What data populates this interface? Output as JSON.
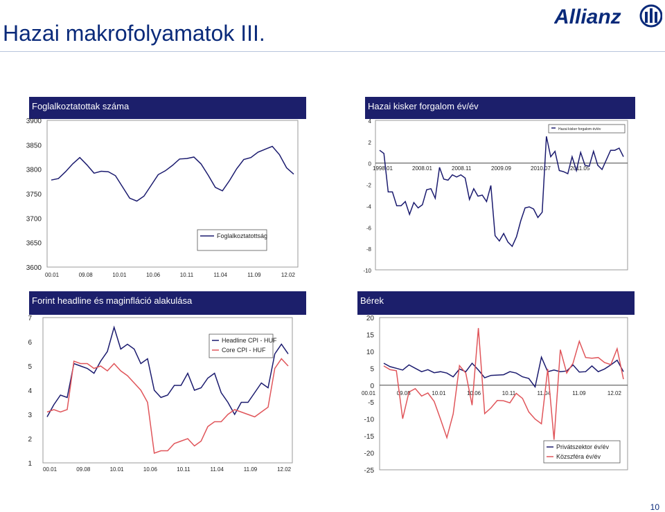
{
  "page": {
    "title": "Hazai makrofolyamatok III.",
    "page_number": "10",
    "logo_text": "Allianz"
  },
  "colors": {
    "header_bg": "#1c1f6b",
    "navy": "#1a1a6e",
    "red": "#e0555a",
    "title": "#0a2a7a"
  },
  "chart_data": [
    {
      "type": "line",
      "header": "Foglalkoztatottak száma",
      "ylim": [
        3600,
        3900
      ],
      "yticks": [
        "3600",
        "3650",
        "3700",
        "3750",
        "3800",
        "3850",
        "3900"
      ],
      "xtick_labels": [
        "00.01",
        "09.08",
        "10.01",
        "10.06",
        "10.11",
        "11.04",
        "11.09",
        "12.02"
      ],
      "series": [
        {
          "name": "Foglalkoztatottság",
          "values": [
            3778,
            3781,
            3795,
            3811,
            3824,
            3809,
            3792,
            3796,
            3795,
            3787,
            3764,
            3741,
            3735,
            3745,
            3767,
            3789,
            3797,
            3808,
            3821,
            3822,
            3825,
            3811,
            3788,
            3763,
            3756,
            3777,
            3801,
            3820,
            3824,
            3835,
            3841,
            3847,
            3830,
            3803,
            3790
          ]
        }
      ]
    },
    {
      "type": "line",
      "header": "Hazai kisker forgalom év/év",
      "ylim": [
        -10,
        4
      ],
      "yticks": [
        "-10",
        "-8",
        "-6",
        "-4",
        "-2",
        "0",
        "2",
        "4"
      ],
      "xtick_labels": [
        "1998.01",
        "2008.01",
        "2008.11",
        "2009.09",
        "2010.07",
        "2011.05"
      ],
      "series": [
        {
          "name": "Hazai kisker forgalom év/év",
          "values": [
            1.2,
            0.9,
            -2.7,
            -2.7,
            -4.0,
            -4.0,
            -3.6,
            -4.8,
            -3.7,
            -4.2,
            -3.9,
            -2.5,
            -2.4,
            -3.3,
            -0.4,
            -1.5,
            -1.6,
            -1.1,
            -1.3,
            -1.1,
            -1.4,
            -3.4,
            -2.4,
            -3.1,
            -3.0,
            -3.6,
            -2.1,
            -6.8,
            -7.3,
            -6.6,
            -7.4,
            -7.8,
            -6.9,
            -5.4,
            -4.2,
            -4.1,
            -4.3,
            -5.1,
            -4.6,
            2.5,
            0.6,
            1.1,
            -0.7,
            -0.8,
            -1.0,
            0.6,
            -0.7,
            1.0,
            -0.2,
            -0.3,
            1.1,
            -0.2,
            -0.6,
            0.3,
            1.2,
            1.2,
            1.4,
            0.6
          ]
        }
      ]
    },
    {
      "type": "line",
      "header": "Forint headline és maginfláció alakulása",
      "ylim": [
        1,
        7
      ],
      "yticks": [
        "1",
        "2",
        "3",
        "4",
        "5",
        "6",
        "7"
      ],
      "xtick_labels": [
        "00.01",
        "09.08",
        "10.01",
        "10.06",
        "10.11",
        "11.04",
        "11.09",
        "12.02"
      ],
      "series": [
        {
          "name": "Headline CPI - HUF",
          "values": [
            2.9,
            3.4,
            3.8,
            3.7,
            5.1,
            5.0,
            4.9,
            4.7,
            5.2,
            5.6,
            6.6,
            5.7,
            5.9,
            5.7,
            5.1,
            5.3,
            4.0,
            3.7,
            3.8,
            4.2,
            4.2,
            4.7,
            4.0,
            4.1,
            4.5,
            4.7,
            3.9,
            3.5,
            3.0,
            3.5,
            3.5,
            3.9,
            4.3,
            4.1,
            5.5,
            5.9,
            5.5
          ]
        },
        {
          "name": "Core CPI - HUF",
          "values": [
            3.1,
            3.2,
            3.1,
            3.2,
            5.2,
            5.1,
            5.1,
            4.9,
            5.0,
            4.8,
            5.1,
            4.8,
            4.6,
            4.3,
            4.0,
            3.5,
            1.4,
            1.5,
            1.5,
            1.8,
            1.9,
            2.0,
            1.7,
            1.9,
            2.5,
            2.7,
            2.7,
            3.0,
            3.2,
            3.1,
            3.0,
            2.9,
            3.1,
            3.3,
            4.9,
            5.3,
            5.0
          ]
        }
      ]
    },
    {
      "type": "line",
      "header": "Bérek",
      "ylim": [
        -25,
        20
      ],
      "yticks": [
        "-25",
        "-20",
        "-15",
        "-10",
        "-5",
        "0",
        "5",
        "10",
        "15",
        "20"
      ],
      "xtick_labels": [
        "00.01",
        "09.08",
        "10.01",
        "10.06",
        "10.11",
        "11.04",
        "11.09",
        "12.02"
      ],
      "series": [
        {
          "name": "Privátszektor év/év",
          "values": [
            6.5,
            5.5,
            5.0,
            4.5,
            6.0,
            5.0,
            4.0,
            4.6,
            3.7,
            4.0,
            3.6,
            2.5,
            4.8,
            4.0,
            6.5,
            4.5,
            2.2,
            2.9,
            3.0,
            3.1,
            4.0,
            3.6,
            2.5,
            2.0,
            -0.5,
            8.3,
            4.0,
            4.5,
            4.0,
            4.2,
            6.0,
            3.9,
            4.0,
            5.7,
            4.0,
            4.8,
            6.0,
            7.4,
            4.0
          ]
        },
        {
          "name": "Közszféra év/év",
          "values": [
            5.7,
            4.6,
            4.3,
            -9.9,
            -2.0,
            -1.0,
            -3.2,
            -2.3,
            -4.8,
            -10.0,
            -15.5,
            -8.5,
            5.8,
            3.6,
            -5.9,
            16.9,
            -8.4,
            -6.7,
            -4.5,
            -4.6,
            -5.2,
            -2.4,
            -3.9,
            -7.9,
            -10.0,
            -11.4,
            4.8,
            -16.1,
            10.5,
            3.6,
            6.5,
            13.0,
            8.2,
            8.0,
            8.2,
            6.7,
            6.1,
            10.8,
            1.8
          ]
        }
      ]
    }
  ]
}
